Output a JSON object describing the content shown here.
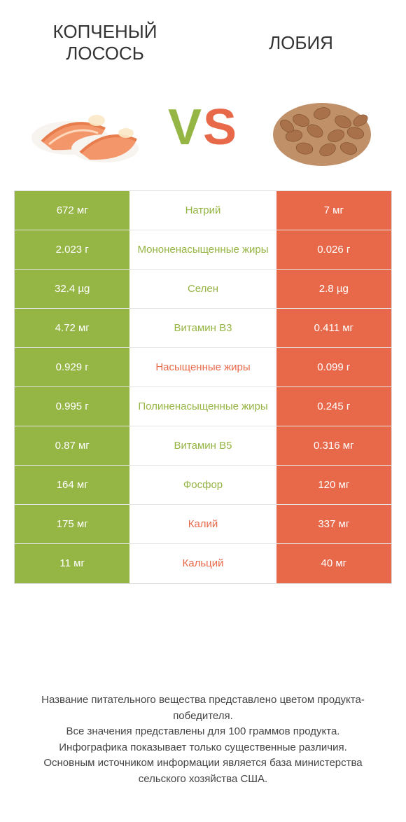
{
  "colors": {
    "green": "#95b544",
    "orange": "#e8694a",
    "white": "#ffffff",
    "row_border": "#e5e5e5",
    "table_border": "#dddddd",
    "footer_text": "#444444",
    "title_text": "#333333"
  },
  "typography": {
    "title_fontsize": 26,
    "vs_fontsize": 72,
    "cell_fontsize": 15,
    "footer_fontsize": 15
  },
  "header": {
    "left_title": "КОПЧЕНЫЙ ЛОСОСЬ",
    "right_title": "ЛОБИЯ",
    "vs_v": "V",
    "vs_s": "S"
  },
  "table": {
    "type": "comparison-table",
    "rows": [
      {
        "left": "672 мг",
        "nutrient": "Натрий",
        "right": "7 мг",
        "winner": "left"
      },
      {
        "left": "2.023 г",
        "nutrient": "Мононенасыщенные жиры",
        "right": "0.026 г",
        "winner": "left"
      },
      {
        "left": "32.4 µg",
        "nutrient": "Селен",
        "right": "2.8 µg",
        "winner": "left"
      },
      {
        "left": "4.72 мг",
        "nutrient": "Витамин B3",
        "right": "0.411 мг",
        "winner": "left"
      },
      {
        "left": "0.929 г",
        "nutrient": "Насыщенные жиры",
        "right": "0.099 г",
        "winner": "right"
      },
      {
        "left": "0.995 г",
        "nutrient": "Полиненасыщенные жиры",
        "right": "0.245 г",
        "winner": "left"
      },
      {
        "left": "0.87 мг",
        "nutrient": "Витамин B5",
        "right": "0.316 мг",
        "winner": "left"
      },
      {
        "left": "164 мг",
        "nutrient": "Фосфор",
        "right": "120 мг",
        "winner": "left"
      },
      {
        "left": "175 мг",
        "nutrient": "Калий",
        "right": "337 мг",
        "winner": "right"
      },
      {
        "left": "11 мг",
        "nutrient": "Кальций",
        "right": "40 мг",
        "winner": "right"
      }
    ]
  },
  "footer": {
    "line1": "Название питательного вещества представлено цветом продукта-победителя.",
    "line2": "Все значения представлены для 100 граммов продукта.",
    "line3": "Инфографика показывает только существенные различия.",
    "line4": "Основным источником информации является база министерства сельского хозяйства США."
  }
}
